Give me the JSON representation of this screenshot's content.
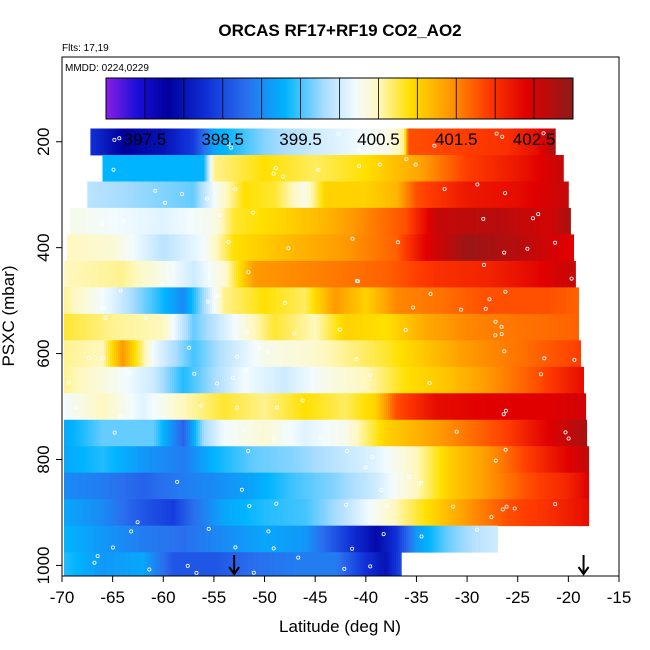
{
  "chart_data": {
    "type": "heatmap",
    "title": "ORCAS RF17+RF19 CO2_AO2",
    "flights_label": "Flts: 17,19",
    "dates_label": "MMDD: 0224,0229",
    "xlabel": "Latitude (deg N)",
    "ylabel": "PSXC (mbar)",
    "xlim": [
      -70,
      -15
    ],
    "ylim": [
      1020,
      40
    ],
    "y_reversed": true,
    "x_ticks": [
      -70,
      -65,
      -60,
      -55,
      -50,
      -45,
      -40,
      -35,
      -30,
      -25,
      -20,
      -15
    ],
    "x_tick_labels": [
      "-70",
      "-65",
      "-60",
      "-55",
      "-50",
      "-45",
      "-40",
      "-35",
      "-30",
      "-25",
      "-20",
      "-15"
    ],
    "y_ticks": [
      200,
      400,
      600,
      800,
      1000
    ],
    "y_tick_labels": [
      "200",
      "400",
      "600",
      "800",
      "1000"
    ],
    "colorbar": {
      "range": [
        397,
        403
      ],
      "ticks": [
        397.5,
        398.5,
        399.5,
        400.5,
        401.5,
        402.5
      ],
      "tick_labels": [
        "397.5",
        "398.5",
        "399.5",
        "400.5",
        "401.5",
        "402.5"
      ],
      "stops": [
        {
          "v": 397.0,
          "c": "#8a1ee6"
        },
        {
          "v": 397.4,
          "c": "#1a0fd8"
        },
        {
          "v": 397.8,
          "c": "#00009c"
        },
        {
          "v": 398.3,
          "c": "#1030d8"
        },
        {
          "v": 398.8,
          "c": "#2a6fee"
        },
        {
          "v": 399.3,
          "c": "#00b4ff"
        },
        {
          "v": 399.8,
          "c": "#a8dcff"
        },
        {
          "v": 400.2,
          "c": "#f2fbff"
        },
        {
          "v": 400.5,
          "c": "#fff8c0"
        },
        {
          "v": 400.9,
          "c": "#ffe000"
        },
        {
          "v": 401.4,
          "c": "#ff9a00"
        },
        {
          "v": 401.9,
          "c": "#ff3c00"
        },
        {
          "v": 402.4,
          "c": "#e00000"
        },
        {
          "v": 403.0,
          "c": "#8e1a1a"
        }
      ]
    },
    "arrow_latitudes": [
      -53,
      -18.5
    ],
    "rows": [
      {
        "p": 200,
        "x0": -67.2,
        "x1": -21.3,
        "pts": [
          [
            -67.2,
            398.3
          ],
          [
            -64,
            397.8
          ],
          [
            -60,
            398.0
          ],
          [
            -57,
            398.4
          ],
          [
            -55,
            399.2
          ],
          [
            -50,
            399.7
          ],
          [
            -45,
            400.0
          ],
          [
            -38,
            400.3
          ],
          [
            -36.2,
            400.6
          ],
          [
            -35.8,
            401.8
          ],
          [
            -30,
            401.9
          ],
          [
            -26,
            402.0
          ],
          [
            -23,
            402.3
          ],
          [
            -21.3,
            402.8
          ]
        ]
      },
      {
        "p": 250,
        "x0": -66,
        "x1": -20.5,
        "pts": [
          [
            -66,
            399.3
          ],
          [
            -56,
            399.3
          ],
          [
            -55,
            400.6
          ],
          [
            -50,
            400.9
          ],
          [
            -45,
            400.7
          ],
          [
            -40,
            400.9
          ],
          [
            -35,
            401.3
          ],
          [
            -30,
            401.9
          ],
          [
            -25,
            402.2
          ],
          [
            -20.5,
            402.6
          ]
        ]
      },
      {
        "p": 300,
        "x0": -67.5,
        "x1": -20,
        "pts": [
          [
            -67.5,
            399.9
          ],
          [
            -57,
            399.6
          ],
          [
            -55,
            400.2
          ],
          [
            -52,
            400.9
          ],
          [
            -49,
            400.8
          ],
          [
            -46,
            400.3
          ],
          [
            -44,
            401.0
          ],
          [
            -40,
            401.0
          ],
          [
            -37,
            401.2
          ],
          [
            -35,
            401.8
          ],
          [
            -30,
            402.2
          ],
          [
            -25,
            402.3
          ],
          [
            -20,
            402.6
          ]
        ]
      },
      {
        "p": 350,
        "x0": -69.2,
        "x1": -19.8,
        "pts": [
          [
            -69.2,
            400.3
          ],
          [
            -60,
            400.1
          ],
          [
            -55,
            400.3
          ],
          [
            -53,
            400.8
          ],
          [
            -48,
            401.0
          ],
          [
            -44,
            401.2
          ],
          [
            -40,
            401.5
          ],
          [
            -36,
            401.8
          ],
          [
            -33,
            402.6
          ],
          [
            -27,
            402.7
          ],
          [
            -22,
            402.5
          ],
          [
            -19.8,
            402.8
          ]
        ]
      },
      {
        "p": 400,
        "x0": -69.5,
        "x1": -19.5,
        "pts": [
          [
            -69.5,
            400.5
          ],
          [
            -65,
            400.4
          ],
          [
            -60,
            399.9
          ],
          [
            -56,
            400.2
          ],
          [
            -53,
            400.9
          ],
          [
            -47,
            401.2
          ],
          [
            -42,
            401.4
          ],
          [
            -37,
            401.7
          ],
          [
            -34,
            402.4
          ],
          [
            -30,
            402.9
          ],
          [
            -25,
            402.7
          ],
          [
            -20,
            402.4
          ]
        ]
      },
      {
        "p": 450,
        "x0": -69.8,
        "x1": -19.3,
        "pts": [
          [
            -69.8,
            400.5
          ],
          [
            -64,
            400.6
          ],
          [
            -60,
            400.3
          ],
          [
            -57,
            400.0
          ],
          [
            -54,
            400.4
          ],
          [
            -51,
            401.4
          ],
          [
            -46,
            401.5
          ],
          [
            -42,
            401.6
          ],
          [
            -38,
            401.7
          ],
          [
            -33,
            402.0
          ],
          [
            -28,
            402.1
          ],
          [
            -24,
            402.3
          ],
          [
            -19.3,
            402.6
          ]
        ]
      },
      {
        "p": 500,
        "x0": -69.8,
        "x1": -19,
        "pts": [
          [
            -69.8,
            400.6
          ],
          [
            -65,
            400.1
          ],
          [
            -61,
            399.5
          ],
          [
            -58,
            399.0
          ],
          [
            -56,
            399.8
          ],
          [
            -54,
            400.6
          ],
          [
            -50,
            400.9
          ],
          [
            -46,
            400.7
          ],
          [
            -43,
            401.4
          ],
          [
            -40,
            401.0
          ],
          [
            -37,
            401.5
          ],
          [
            -33,
            401.6
          ],
          [
            -28,
            401.8
          ],
          [
            -22,
            401.8
          ],
          [
            -19,
            401.7
          ]
        ]
      },
      {
        "p": 550,
        "x0": -69.8,
        "x1": -19,
        "pts": [
          [
            -69.8,
            400.8
          ],
          [
            -65,
            400.6
          ],
          [
            -60,
            400.5
          ],
          [
            -57,
            399.6
          ],
          [
            -55,
            399.9
          ],
          [
            -53,
            400.2
          ],
          [
            -49,
            400.8
          ],
          [
            -45,
            400.5
          ],
          [
            -42,
            401.0
          ],
          [
            -38,
            400.9
          ],
          [
            -34,
            401.3
          ],
          [
            -30,
            401.5
          ],
          [
            -25,
            401.6
          ],
          [
            -19,
            401.7
          ]
        ]
      },
      {
        "p": 600,
        "x0": -69.8,
        "x1": -18.8,
        "pts": [
          [
            -69.8,
            400.6
          ],
          [
            -66,
            400.5
          ],
          [
            -64,
            401.4
          ],
          [
            -61,
            400.2
          ],
          [
            -57,
            399.5
          ],
          [
            -54,
            399.9
          ],
          [
            -50,
            400.3
          ],
          [
            -46,
            400.4
          ],
          [
            -42,
            400.6
          ],
          [
            -38,
            400.8
          ],
          [
            -34,
            401.1
          ],
          [
            -30,
            401.4
          ],
          [
            -25,
            401.6
          ],
          [
            -18.8,
            401.9
          ]
        ]
      },
      {
        "p": 650,
        "x0": -69.8,
        "x1": -18.5,
        "pts": [
          [
            -69.8,
            400.6
          ],
          [
            -65,
            400.3
          ],
          [
            -61,
            400.0
          ],
          [
            -58,
            399.4
          ],
          [
            -55,
            399.8
          ],
          [
            -52,
            400.2
          ],
          [
            -48,
            400.0
          ],
          [
            -44,
            400.3
          ],
          [
            -40,
            400.5
          ],
          [
            -36,
            400.9
          ],
          [
            -32,
            401.1
          ],
          [
            -28,
            401.4
          ],
          [
            -23,
            401.8
          ],
          [
            -18.5,
            402.3
          ]
        ]
      },
      {
        "p": 700,
        "x0": -69.8,
        "x1": -18.3,
        "pts": [
          [
            -69.8,
            400.2
          ],
          [
            -66,
            400.5
          ],
          [
            -62,
            400.1
          ],
          [
            -58,
            400.5
          ],
          [
            -54,
            400.8
          ],
          [
            -50,
            400.6
          ],
          [
            -46,
            400.9
          ],
          [
            -42,
            400.7
          ],
          [
            -39,
            401.0
          ],
          [
            -37,
            401.8
          ],
          [
            -33,
            402.3
          ],
          [
            -28,
            402.4
          ],
          [
            -22,
            402.4
          ],
          [
            -18.3,
            402.5
          ]
        ]
      },
      {
        "p": 750,
        "x0": -69.8,
        "x1": -18.2,
        "pts": [
          [
            -69.8,
            399.2
          ],
          [
            -66,
            399.6
          ],
          [
            -61,
            399.6
          ],
          [
            -58,
            398.7
          ],
          [
            -56,
            399.8
          ],
          [
            -54,
            400.2
          ],
          [
            -50,
            400.4
          ],
          [
            -46,
            400.1
          ],
          [
            -42,
            400.3
          ],
          [
            -38,
            401.0
          ],
          [
            -34,
            401.3
          ],
          [
            -30,
            401.6
          ],
          [
            -26,
            401.9
          ],
          [
            -22,
            402.4
          ],
          [
            -18.2,
            402.8
          ]
        ]
      },
      {
        "p": 800,
        "x0": -69.8,
        "x1": -18,
        "pts": [
          [
            -69.8,
            399.2
          ],
          [
            -66,
            399.4
          ],
          [
            -62,
            399.1
          ],
          [
            -58,
            398.9
          ],
          [
            -55,
            399.3
          ],
          [
            -51,
            399.6
          ],
          [
            -47,
            399.7
          ],
          [
            -43,
            399.9
          ],
          [
            -39,
            400.1
          ],
          [
            -35,
            400.5
          ],
          [
            -32,
            401.0
          ],
          [
            -28,
            401.4
          ],
          [
            -24,
            401.9
          ],
          [
            -20,
            402.4
          ],
          [
            -18,
            402.6
          ]
        ]
      },
      {
        "p": 850,
        "x0": -69.8,
        "x1": -18,
        "pts": [
          [
            -69.8,
            399.0
          ],
          [
            -66,
            398.9
          ],
          [
            -62,
            398.7
          ],
          [
            -58,
            398.9
          ],
          [
            -55,
            399.0
          ],
          [
            -51,
            399.2
          ],
          [
            -47,
            399.5
          ],
          [
            -43,
            399.7
          ],
          [
            -39,
            400.0
          ],
          [
            -35,
            400.5
          ],
          [
            -32,
            401.0
          ],
          [
            -28,
            401.4
          ],
          [
            -24,
            401.8
          ],
          [
            -20,
            402.1
          ],
          [
            -18,
            402.4
          ]
        ]
      },
      {
        "p": 900,
        "x0": -69.8,
        "x1": -18,
        "pts": [
          [
            -69.8,
            399.2
          ],
          [
            -66,
            399.0
          ],
          [
            -62,
            398.6
          ],
          [
            -59,
            398.4
          ],
          [
            -57,
            398.8
          ],
          [
            -54,
            399.2
          ],
          [
            -50,
            399.4
          ],
          [
            -46,
            399.5
          ],
          [
            -42,
            399.9
          ],
          [
            -38,
            400.4
          ],
          [
            -34,
            400.9
          ],
          [
            -30,
            401.4
          ],
          [
            -26,
            401.8
          ],
          [
            -22,
            402.0
          ],
          [
            -18,
            402.3
          ]
        ]
      },
      {
        "p": 950,
        "x0": -69.8,
        "x1": -27,
        "pts": [
          [
            -69.8,
            399.3
          ],
          [
            -66,
            399.1
          ],
          [
            -62,
            398.9
          ],
          [
            -58,
            398.8
          ],
          [
            -54,
            399.0
          ],
          [
            -50,
            399.2
          ],
          [
            -46,
            399.1
          ],
          [
            -42,
            398.4
          ],
          [
            -39,
            397.9
          ],
          [
            -37,
            398.3
          ],
          [
            -35,
            399.1
          ],
          [
            -32,
            399.6
          ],
          [
            -29,
            399.9
          ],
          [
            -27,
            400.0
          ]
        ]
      },
      {
        "p": 1000,
        "x0": -69.8,
        "x1": -36.5,
        "pts": [
          [
            -69.8,
            399.4
          ],
          [
            -66,
            399.1
          ],
          [
            -62,
            399.2
          ],
          [
            -59,
            398.6
          ],
          [
            -55,
            398.6
          ],
          [
            -51,
            398.8
          ],
          [
            -47,
            398.9
          ],
          [
            -43,
            398.9
          ],
          [
            -40,
            398.3
          ],
          [
            -38,
            398.0
          ],
          [
            -36.5,
            398.5
          ]
        ]
      }
    ]
  }
}
